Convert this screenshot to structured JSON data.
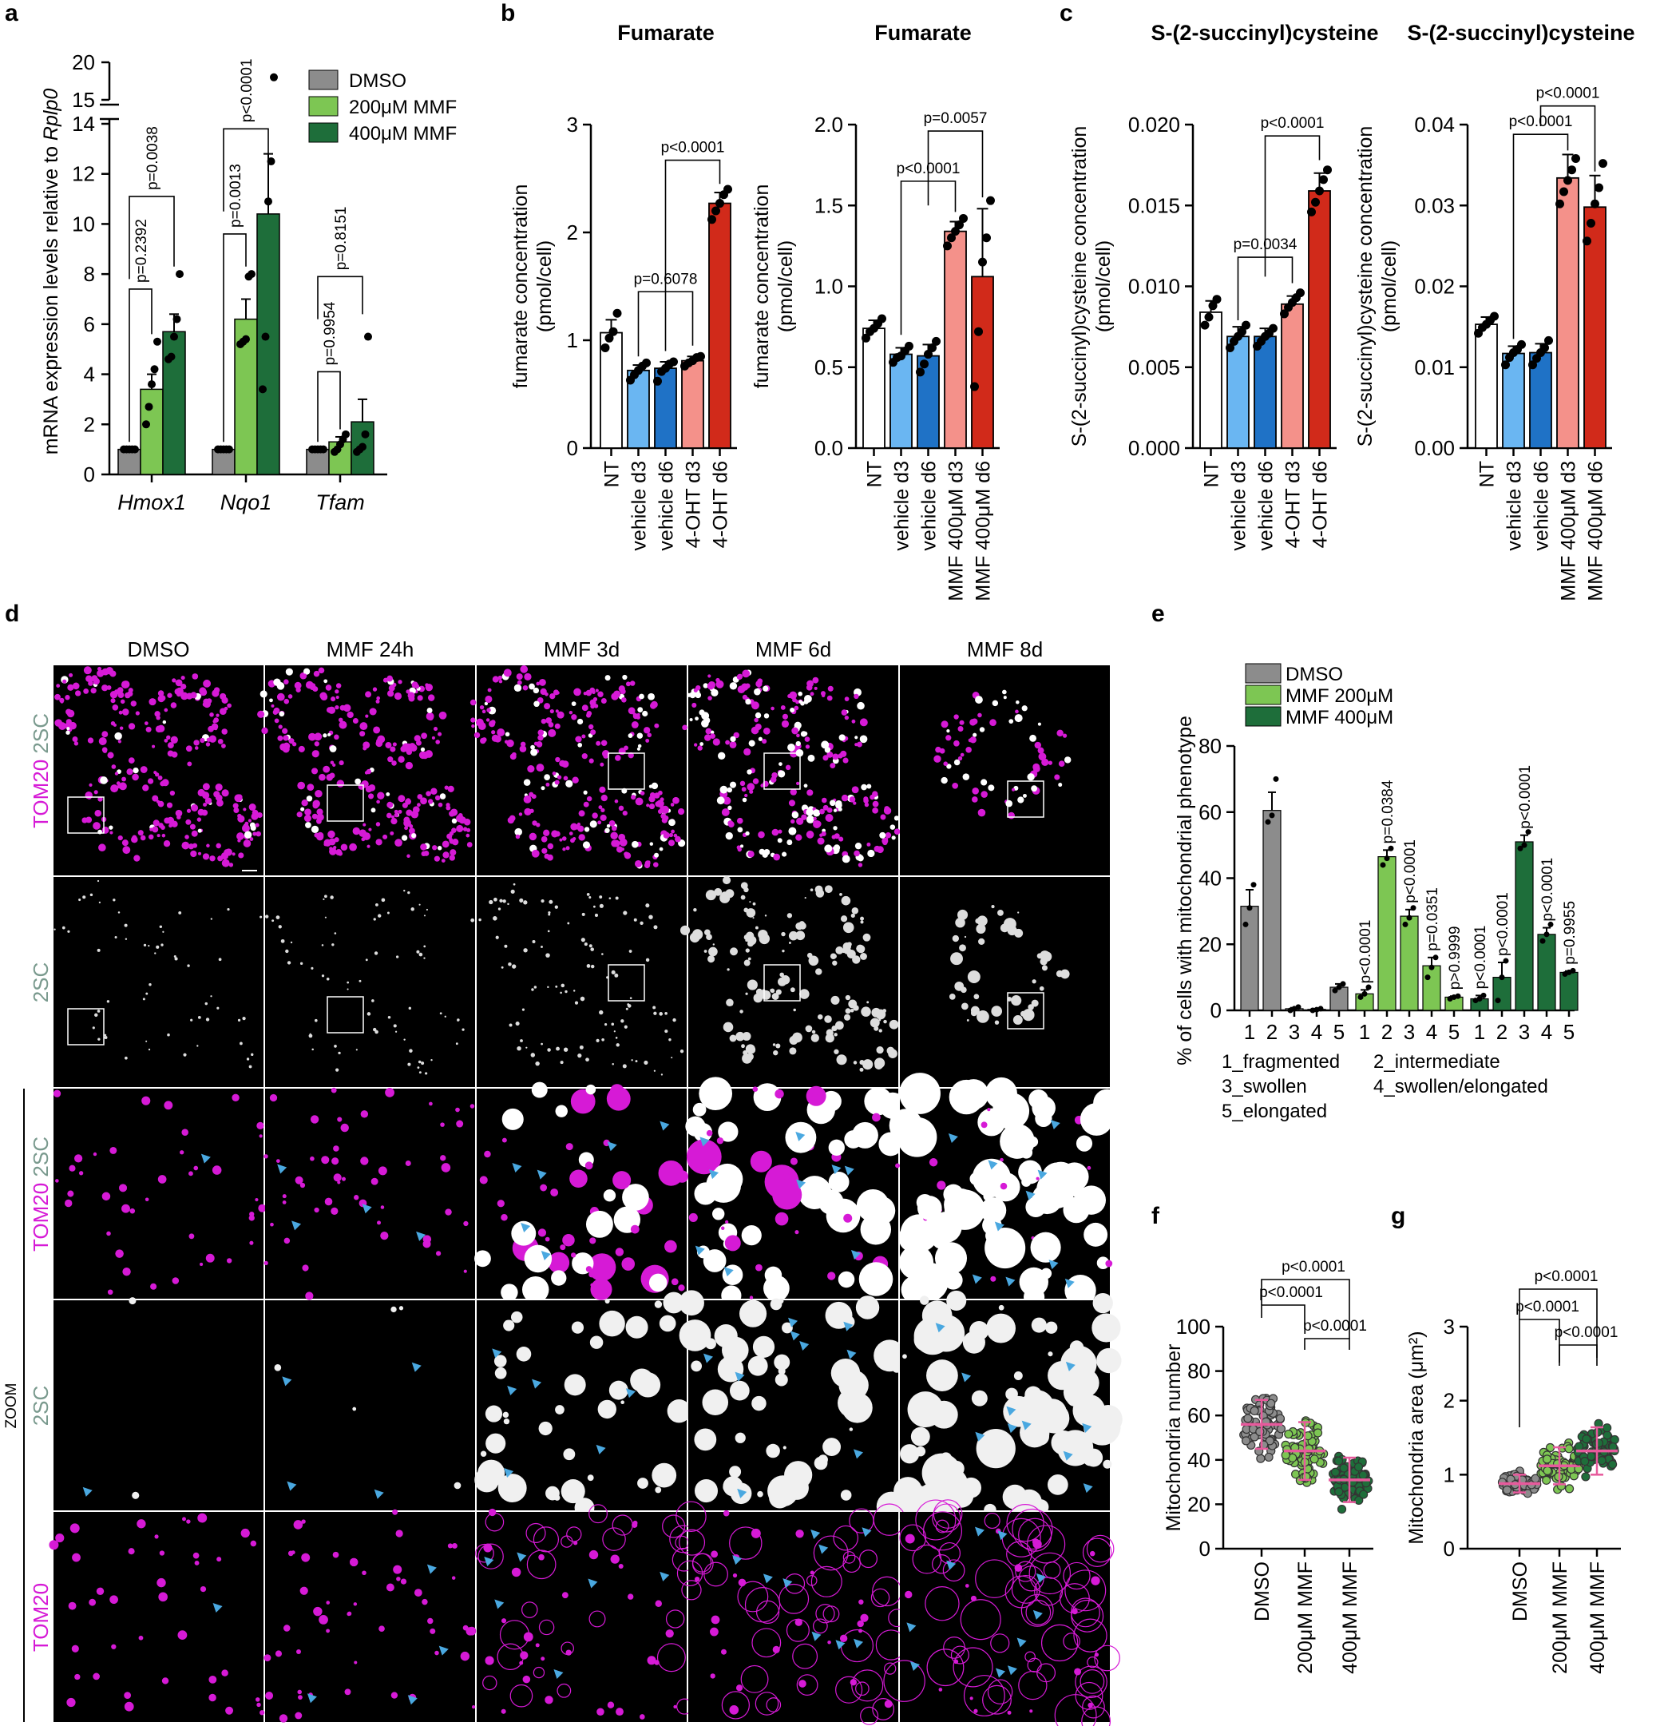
{
  "colors": {
    "grey": "#8c8c8c",
    "light_green": "#7dc653",
    "dark_green": "#1e6e3a",
    "white_bar": "#ffffff",
    "light_blue": "#6ab6f2",
    "mid_blue": "#1f72c6",
    "salmon": "#f4918a",
    "red": "#d12a1a",
    "magenta": "#d61ad6",
    "arrow": "#4aa8e0",
    "median": "#e75a9c"
  },
  "panels": {
    "a": "a",
    "b": "b",
    "c": "c",
    "d": "d",
    "e": "e",
    "f": "f",
    "g": "g"
  },
  "chart_data": [
    {
      "id": "a",
      "type": "bar",
      "ylabel_pre": "mRNA expression levels relative to ",
      "ylabel_italic": "Rplp0",
      "ylim_lower": [
        0,
        14
      ],
      "ylim_upper": [
        15,
        20
      ],
      "yticks": [
        "0",
        "2",
        "4",
        "6",
        "8",
        "10",
        "12",
        "14",
        "15",
        "20"
      ],
      "categories": [
        "Hmox1",
        "Nqo1",
        "Tfam"
      ],
      "series": [
        {
          "name": "DMSO",
          "color": "#8c8c8c",
          "values": [
            1.0,
            1.0,
            1.0
          ]
        },
        {
          "name": "200μM MMF",
          "color": "#7dc653",
          "values": [
            3.4,
            6.2,
            1.3
          ]
        },
        {
          "name": "400μM MMF",
          "color": "#1e6e3a",
          "values": [
            5.7,
            10.4,
            2.1
          ]
        }
      ],
      "errors": [
        [
          0.05,
          0.05,
          0.05
        ],
        [
          0.6,
          0.8,
          0.2
        ],
        [
          0.7,
          2.4,
          0.9
        ]
      ],
      "points": [
        [
          [
            1,
            1,
            1,
            1,
            1
          ],
          [
            1,
            1,
            1,
            1,
            1
          ],
          [
            1,
            1,
            1,
            1,
            1
          ]
        ],
        [
          [
            2.0,
            2.7,
            3.6,
            4.2,
            5.3
          ],
          [
            5.2,
            5.3,
            5.4,
            7.9,
            8.0
          ],
          [
            0.9,
            1.0,
            1.2,
            1.4,
            1.6
          ]
        ],
        [
          [
            4.6,
            4.7,
            5.5,
            6.2,
            8.0
          ],
          [
            3.4,
            5.5,
            10.9,
            12.5,
            18.0
          ],
          [
            0.9,
            1.0,
            1.1,
            1.6,
            5.5
          ]
        ]
      ],
      "pvalues": [
        {
          "text": "p=0.2392"
        },
        {
          "text": "p=0.0038"
        },
        {
          "text": "p=0.0013"
        },
        {
          "text": "p<0.0001"
        },
        {
          "text": "p=0.9954"
        },
        {
          "text": "p=0.8151"
        }
      ]
    },
    {
      "id": "b1",
      "type": "bar",
      "title": "Fumarate",
      "ylabel": [
        "fumarate concentration",
        "(pmol/cell)"
      ],
      "ylim": [
        0,
        3
      ],
      "yticks": [
        "0",
        "1",
        "2",
        "3"
      ],
      "categories": [
        "NT",
        "vehicle d3",
        "vehicle d6",
        "4-OHT d3",
        "4-OHT d6"
      ],
      "values": [
        1.07,
        0.72,
        0.74,
        0.81,
        2.27
      ],
      "errors": [
        0.12,
        0.05,
        0.06,
        0.04,
        0.1
      ],
      "points": [
        [
          0.93,
          1.02,
          1.08,
          1.25
        ],
        [
          0.63,
          0.68,
          0.72,
          0.76,
          0.79
        ],
        [
          0.62,
          0.71,
          0.74,
          0.78,
          0.8
        ],
        [
          0.76,
          0.79,
          0.81,
          0.84,
          0.85
        ],
        [
          2.12,
          2.2,
          2.27,
          2.35,
          2.4
        ]
      ],
      "colors": [
        "#ffffff",
        "#6ab6f2",
        "#1f72c6",
        "#f4918a",
        "#d12a1a"
      ],
      "pvalues": [
        {
          "text": "p=0.6078"
        },
        {
          "text": "p<0.0001"
        }
      ]
    },
    {
      "id": "b2",
      "type": "bar",
      "title": "Fumarate",
      "ylabel": [
        "fumarate concentration",
        "(pmol/cell)"
      ],
      "ylim": [
        0,
        2
      ],
      "yticks": [
        "0.0",
        "0.5",
        "1.0",
        "1.5",
        "2.0"
      ],
      "categories": [
        "NT",
        "vehicle d3",
        "vehicle d6",
        "MMF 400μM d3",
        "MMF 400μM d6"
      ],
      "values": [
        0.74,
        0.58,
        0.57,
        1.34,
        1.06
      ],
      "errors": [
        0.05,
        0.04,
        0.07,
        0.06,
        0.42
      ],
      "points": [
        [
          0.68,
          0.72,
          0.74,
          0.77,
          0.8
        ],
        [
          0.53,
          0.56,
          0.57,
          0.6,
          0.63
        ],
        [
          0.47,
          0.52,
          0.58,
          0.62,
          0.66
        ],
        [
          1.25,
          1.3,
          1.34,
          1.38,
          1.42
        ],
        [
          0.38,
          0.72,
          1.15,
          1.3,
          1.53
        ]
      ],
      "colors": [
        "#ffffff",
        "#6ab6f2",
        "#1f72c6",
        "#f4918a",
        "#d12a1a"
      ],
      "pvalues": [
        {
          "text": "p<0.0001"
        },
        {
          "text": "p=0.0057"
        }
      ]
    },
    {
      "id": "c1",
      "type": "bar",
      "title": "S-(2-succinyl)cysteine",
      "ylabel": [
        "S-(2-succinyl)cysteine concentration",
        "(pmol/cell)"
      ],
      "ylim": [
        0,
        0.02
      ],
      "yticks": [
        "0.000",
        "0.005",
        "0.010",
        "0.015",
        "0.020"
      ],
      "categories": [
        "NT",
        "vehicle d3",
        "vehicle d6",
        "4-OHT d3",
        "4-OHT d6"
      ],
      "values": [
        0.0084,
        0.0069,
        0.0069,
        0.0089,
        0.0159
      ],
      "errors": [
        0.0007,
        0.0006,
        0.0005,
        0.0005,
        0.0011
      ],
      "points": [
        [
          0.0076,
          0.0081,
          0.0088,
          0.0092
        ],
        [
          0.0062,
          0.0066,
          0.0069,
          0.0072,
          0.0076
        ],
        [
          0.0063,
          0.0066,
          0.0069,
          0.0071,
          0.0074
        ],
        [
          0.0083,
          0.0087,
          0.009,
          0.0093,
          0.0096
        ],
        [
          0.0146,
          0.0152,
          0.0159,
          0.0166,
          0.0172
        ]
      ],
      "colors": [
        "#ffffff",
        "#6ab6f2",
        "#1f72c6",
        "#f4918a",
        "#d12a1a"
      ],
      "pvalues": [
        {
          "text": "p=0.0034"
        },
        {
          "text": "p<0.0001"
        }
      ]
    },
    {
      "id": "c2",
      "type": "bar",
      "title": "S-(2-succinyl)cysteine",
      "ylabel": [
        "S-(2-succinyl)cysteine concentration",
        "(pmol/cell)"
      ],
      "ylim": [
        0,
        0.04
      ],
      "yticks": [
        "0.00",
        "0.01",
        "0.02",
        "0.03",
        "0.04"
      ],
      "categories": [
        "NT",
        "vehicle d3",
        "vehicle d6",
        "MMF 400μM d3",
        "MMF 400μM d6"
      ],
      "values": [
        0.0153,
        0.0117,
        0.0118,
        0.0334,
        0.0298
      ],
      "errors": [
        0.0009,
        0.0009,
        0.0011,
        0.0029,
        0.0039
      ],
      "points": [
        [
          0.0142,
          0.0149,
          0.0153,
          0.0158,
          0.0163
        ],
        [
          0.0103,
          0.0112,
          0.0118,
          0.0122,
          0.0128
        ],
        [
          0.0103,
          0.0111,
          0.0118,
          0.0124,
          0.0133
        ],
        [
          0.0302,
          0.0317,
          0.0331,
          0.0344,
          0.0358
        ],
        [
          0.0256,
          0.0278,
          0.0302,
          0.0322,
          0.0352
        ]
      ],
      "colors": [
        "#ffffff",
        "#6ab6f2",
        "#1f72c6",
        "#f4918a",
        "#d12a1a"
      ],
      "pvalues": [
        {
          "text": "p<0.0001"
        },
        {
          "text": "p<0.0001"
        }
      ]
    },
    {
      "id": "e",
      "type": "bar",
      "ylabel": "% of cells with mitochondrial phenotype",
      "ylim": [
        0,
        80
      ],
      "yticks": [
        "0",
        "20",
        "40",
        "60",
        "80"
      ],
      "categories": [
        "1",
        "2",
        "3",
        "4",
        "5"
      ],
      "series": [
        {
          "name": "DMSO",
          "color": "#8c8c8c",
          "values": [
            31.5,
            60.5,
            0.5,
            0.3,
            7.0
          ],
          "errors": [
            5.0,
            5.5,
            0.3,
            0.2,
            1.0
          ],
          "points": [
            [
              26,
              31,
              38
            ],
            [
              57,
              59,
              70
            ],
            [
              0,
              0.5,
              1
            ],
            [
              0,
              0.2,
              0.5
            ],
            [
              6,
              7,
              8
            ]
          ]
        },
        {
          "name": "MMF 200μM",
          "color": "#7dc653",
          "values": [
            5.0,
            46.5,
            28.5,
            13.5,
            4.0
          ],
          "errors": [
            1.2,
            2.0,
            2.0,
            2.5,
            0.3
          ],
          "points": [
            [
              4,
              5,
              7
            ],
            [
              44,
              46,
              49
            ],
            [
              26,
              28,
              31
            ],
            [
              10,
              13,
              16
            ],
            [
              3.5,
              4,
              4.3
            ]
          ]
        },
        {
          "name": "MMF 400μM",
          "color": "#1e6e3a",
          "values": [
            3.5,
            10.0,
            51.0,
            23.0,
            11.5
          ],
          "errors": [
            1.0,
            4.5,
            2.0,
            2.0,
            0.4
          ],
          "points": [
            [
              3,
              3.5,
              4.5
            ],
            [
              3,
              10,
              15
            ],
            [
              49,
              50,
              54
            ],
            [
              21,
              23,
              26
            ],
            [
              11,
              11.5,
              12
            ]
          ]
        }
      ],
      "pvalues": [
        "p<0.0001",
        "p=0.0384",
        "p<0.0001",
        "p=0.0351",
        "p>0.9999",
        "p<0.0001",
        "p<0.0001",
        "p<0.0001",
        "p<0.0001",
        "p=0.9955"
      ],
      "phenotypes": [
        "1_fragmented",
        "2_intermediate",
        "3_swollen",
        "4_swollen/elongated",
        "5_elongated"
      ]
    },
    {
      "id": "f",
      "type": "scatter",
      "ylabel": "Mitochondria number",
      "ylim": [
        0,
        100
      ],
      "yticks": [
        "0",
        "20",
        "40",
        "60",
        "80",
        "100"
      ],
      "categories": [
        "DMSO",
        "200μM MMF",
        "400μM MMF"
      ],
      "medians": [
        56,
        44,
        31
      ],
      "sd": [
        11,
        13,
        10
      ],
      "colors": [
        "#8c8c8c",
        "#7dc653",
        "#1e6e3a"
      ],
      "pvalues": [
        {
          "text": "p<0.0001"
        },
        {
          "text": "p<0.0001"
        },
        {
          "text": "p<0.0001"
        }
      ]
    },
    {
      "id": "g",
      "type": "scatter",
      "ylabel": "Mitochondria area (μm²)",
      "ylim": [
        0,
        3
      ],
      "yticks": [
        "0",
        "1",
        "2",
        "3"
      ],
      "categories": [
        "DMSO",
        "200μM MMF",
        "400μM MMF"
      ],
      "medians": [
        0.88,
        1.12,
        1.32
      ],
      "sd": [
        0.12,
        0.25,
        0.32
      ],
      "colors": [
        "#8c8c8c",
        "#7dc653",
        "#1e6e3a"
      ],
      "pvalues": [
        {
          "text": "p<0.0001"
        },
        {
          "text": "p<0.0001"
        },
        {
          "text": "p<0.0001"
        }
      ]
    }
  ],
  "microscopy": {
    "columns": [
      "DMSO",
      "MMF 24h",
      "MMF 3d",
      "MMF 6d",
      "MMF 8d"
    ],
    "row_labels": {
      "tom20": "TOM20",
      "sc2": "2SC",
      "zoom": "ZOOM"
    }
  }
}
